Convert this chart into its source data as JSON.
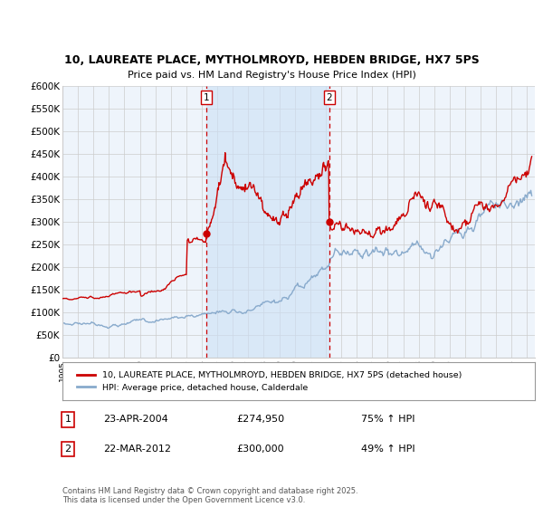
{
  "title": "10, LAUREATE PLACE, MYTHOLMROYD, HEBDEN BRIDGE, HX7 5PS",
  "subtitle": "Price paid vs. HM Land Registry's House Price Index (HPI)",
  "xlim_start": 1995.0,
  "xlim_end": 2025.5,
  "ylim": [
    0,
    600000
  ],
  "yticks": [
    0,
    50000,
    100000,
    150000,
    200000,
    250000,
    300000,
    350000,
    400000,
    450000,
    500000,
    550000,
    600000
  ],
  "marker1_x": 2004.31,
  "marker1_y": 274950,
  "marker1_label": "1",
  "marker2_x": 2012.22,
  "marker2_y": 300000,
  "marker2_label": "2",
  "legend_line1": "10, LAUREATE PLACE, MYTHOLMROYD, HEBDEN BRIDGE, HX7 5PS (detached house)",
  "legend_line2": "HPI: Average price, detached house, Calderdale",
  "table_row1": [
    "1",
    "23-APR-2004",
    "£274,950",
    "75% ↑ HPI"
  ],
  "table_row2": [
    "2",
    "22-MAR-2012",
    "£300,000",
    "49% ↑ HPI"
  ],
  "footnote": "Contains HM Land Registry data © Crown copyright and database right 2025.\nThis data is licensed under the Open Government Licence v3.0.",
  "red_color": "#cc0000",
  "blue_color": "#88aacc",
  "shade_color": "#ddeeff",
  "bg_color": "#eef4fb",
  "plot_bg": "#ffffff",
  "grid_color": "#cccccc",
  "vline_color": "#cc0000"
}
